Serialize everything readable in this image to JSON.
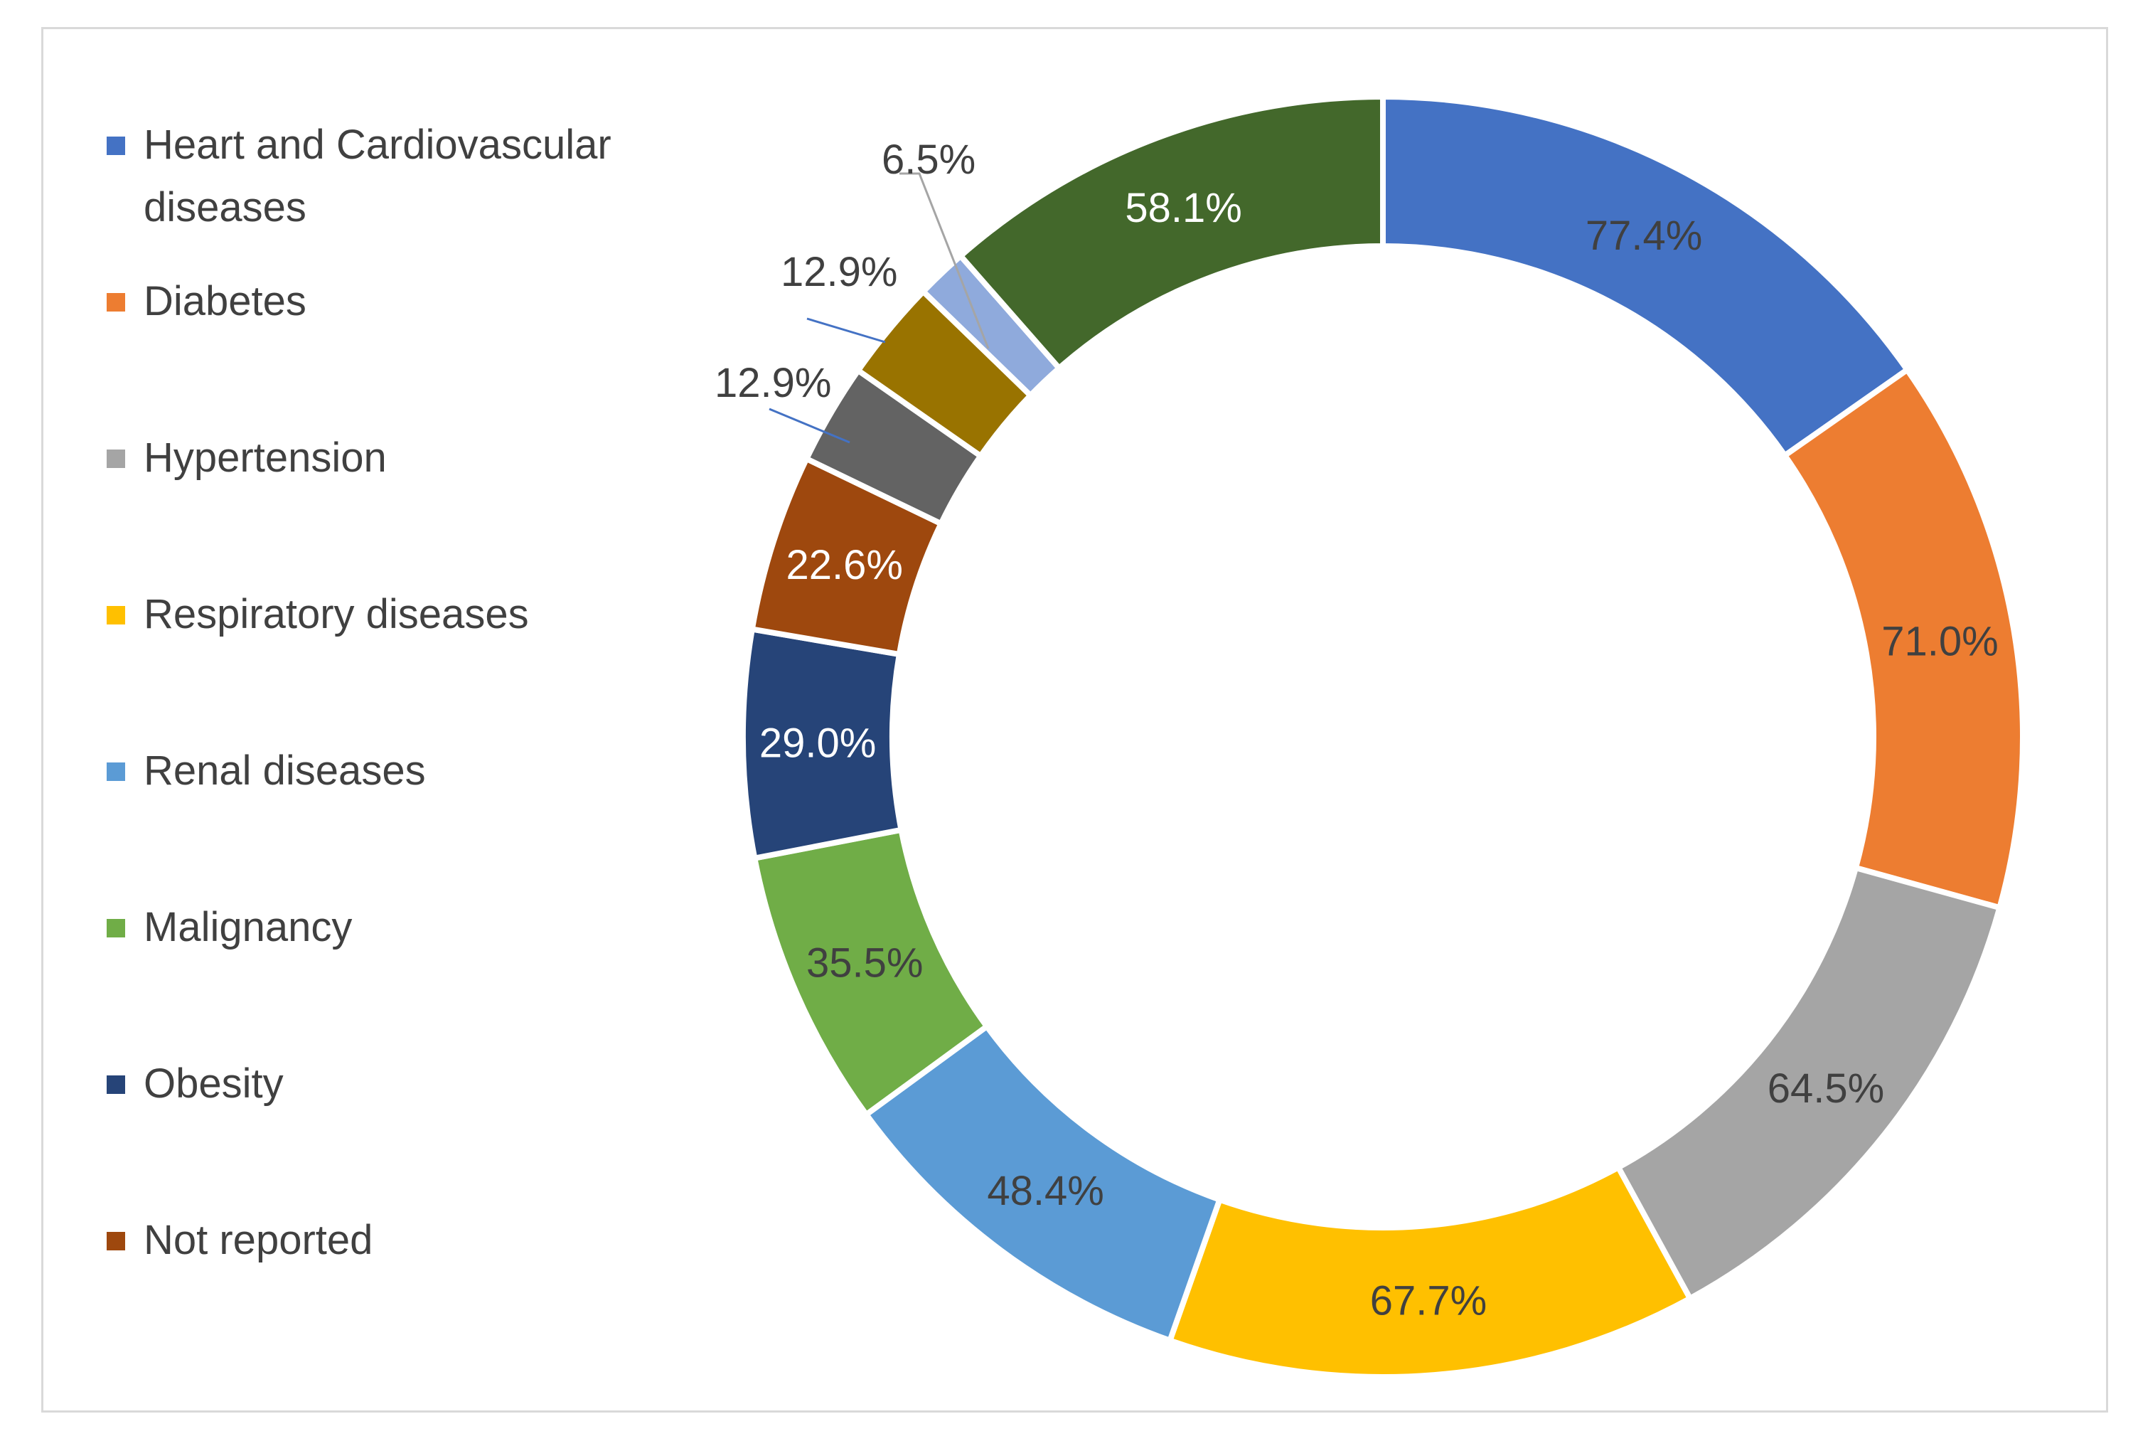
{
  "chart_data": {
    "type": "pie",
    "subtype": "donut",
    "categories": [
      "Heart and Cardiovascular diseases",
      "Diabetes",
      "Hypertension",
      "Respiratory diseases",
      "Renal diseases",
      "Malignancy",
      "Obesity",
      "Not reported",
      "",
      "",
      "",
      ""
    ],
    "values": [
      77.4,
      71.0,
      64.5,
      67.7,
      48.4,
      35.5,
      29.0,
      22.6,
      12.9,
      12.9,
      6.5,
      58.1
    ],
    "labels": [
      "77.4%",
      "71.0%",
      "64.5%",
      "67.7%",
      "48.4%",
      "35.5%",
      "29.0%",
      "22.6%",
      "12.9%",
      "12.9%",
      "6.5%",
      "58.1%"
    ],
    "colors": [
      "#4472C4",
      "#ED7D31",
      "#A5A5A5",
      "#FFC000",
      "#5B9BD5",
      "#70AD47",
      "#264478",
      "#9E480E",
      "#636363",
      "#997300",
      "#8FAADC",
      "#43682B"
    ],
    "label_colors": [
      "#404040",
      "#404040",
      "#404040",
      "#404040",
      "#404040",
      "#404040",
      "#ffffff",
      "#ffffff",
      "#404040",
      "#404040",
      "#404040",
      "#ffffff"
    ],
    "outside_labels": [
      false,
      false,
      false,
      false,
      false,
      false,
      false,
      false,
      true,
      true,
      true,
      false
    ],
    "leader_colors": [
      "",
      "",
      "",
      "",
      "",
      "",
      "",
      "",
      "#4472C4",
      "#4472C4",
      "#A5A5A5",
      ""
    ],
    "legend_position": "left",
    "legend": [
      {
        "label": "Heart and Cardiovascular diseases",
        "color": "#4472C4"
      },
      {
        "label": "Diabetes",
        "color": "#ED7D31"
      },
      {
        "label": "Hypertension",
        "color": "#A5A5A5"
      },
      {
        "label": "Respiratory diseases",
        "color": "#FFC000"
      },
      {
        "label": "Renal diseases",
        "color": "#5B9BD5"
      },
      {
        "label": "Malignancy",
        "color": "#70AD47"
      },
      {
        "label": "Obesity",
        "color": "#264478"
      },
      {
        "label": "Not reported",
        "color": "#9E480E"
      }
    ]
  }
}
